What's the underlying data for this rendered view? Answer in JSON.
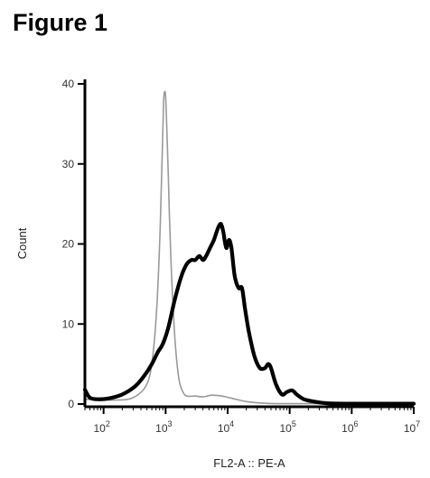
{
  "figure": {
    "heading": "Figure 1"
  },
  "chart_data": {
    "type": "line",
    "title": "",
    "xlabel": "FL2-A :: PE-A",
    "ylabel": "Count",
    "xscale": "log",
    "xlim": [
      50,
      10000000
    ],
    "ylim": [
      0,
      40
    ],
    "x_ticks": [
      {
        "value": 100,
        "base": "10",
        "exp": "2"
      },
      {
        "value": 1000,
        "base": "10",
        "exp": "3"
      },
      {
        "value": 10000,
        "base": "10",
        "exp": "4"
      },
      {
        "value": 100000,
        "base": "10",
        "exp": "5"
      },
      {
        "value": 1000000,
        "base": "10",
        "exp": "6"
      },
      {
        "value": 10000000,
        "base": "10",
        "exp": "7"
      }
    ],
    "y_ticks": [
      {
        "value": 0,
        "label": "0"
      },
      {
        "value": 10,
        "label": "10"
      },
      {
        "value": 20,
        "label": "20"
      },
      {
        "value": 30,
        "label": "30"
      },
      {
        "value": 40,
        "label": "40"
      }
    ],
    "grid": false,
    "legend": "none",
    "series": [
      {
        "color": "#999999",
        "style": "thin",
        "points": [
          [
            50,
            0.6
          ],
          [
            150,
            0.5
          ],
          [
            300,
            0.8
          ],
          [
            500,
            2.5
          ],
          [
            620,
            6
          ],
          [
            720,
            12
          ],
          [
            800,
            20
          ],
          [
            860,
            28
          ],
          [
            900,
            34
          ],
          [
            930,
            38
          ],
          [
            960,
            39
          ],
          [
            1000,
            38.5
          ],
          [
            1040,
            35
          ],
          [
            1100,
            29
          ],
          [
            1180,
            21
          ],
          [
            1300,
            13
          ],
          [
            1450,
            7
          ],
          [
            1650,
            3
          ],
          [
            1900,
            1.5
          ],
          [
            2200,
            1.0
          ],
          [
            3000,
            1.0
          ],
          [
            4000,
            0.9
          ],
          [
            5500,
            1.1
          ],
          [
            8000,
            1.0
          ],
          [
            12000,
            0.7
          ],
          [
            20000,
            0.3
          ],
          [
            40000,
            0.1
          ],
          [
            100000,
            0.05
          ],
          [
            10000000,
            0.05
          ]
        ]
      },
      {
        "color": "#000000",
        "style": "thick",
        "points": [
          [
            50,
            1.8
          ],
          [
            60,
            0.8
          ],
          [
            80,
            0.6
          ],
          [
            120,
            0.7
          ],
          [
            200,
            1.2
          ],
          [
            320,
            2.2
          ],
          [
            450,
            3.5
          ],
          [
            600,
            5.0
          ],
          [
            750,
            6.5
          ],
          [
            900,
            7.5
          ],
          [
            1100,
            9.5
          ],
          [
            1400,
            13
          ],
          [
            1800,
            16
          ],
          [
            2200,
            17.5
          ],
          [
            2600,
            18
          ],
          [
            3000,
            18
          ],
          [
            3500,
            18.5
          ],
          [
            4000,
            18
          ],
          [
            4500,
            18.5
          ],
          [
            5200,
            19.5
          ],
          [
            6000,
            20.5
          ],
          [
            7000,
            22
          ],
          [
            7800,
            22.5
          ],
          [
            8500,
            21.5
          ],
          [
            9500,
            19.5
          ],
          [
            10500,
            20.5
          ],
          [
            11500,
            19.5
          ],
          [
            13000,
            16
          ],
          [
            15000,
            14.5
          ],
          [
            17000,
            14.5
          ],
          [
            19000,
            12
          ],
          [
            22000,
            9
          ],
          [
            27000,
            6
          ],
          [
            33000,
            4.5
          ],
          [
            40000,
            4.5
          ],
          [
            45000,
            5.0
          ],
          [
            50000,
            4.5
          ],
          [
            60000,
            2.5
          ],
          [
            75000,
            1.2
          ],
          [
            90000,
            1.5
          ],
          [
            110000,
            1.7
          ],
          [
            130000,
            1.2
          ],
          [
            170000,
            0.6
          ],
          [
            250000,
            0.3
          ],
          [
            400000,
            0.1
          ],
          [
            1000000,
            0.05
          ],
          [
            10000000,
            0.05
          ]
        ]
      }
    ]
  }
}
